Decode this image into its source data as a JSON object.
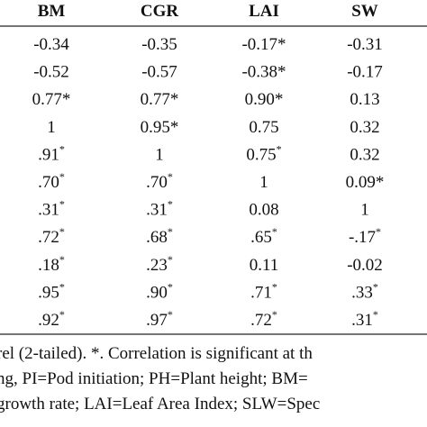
{
  "table": {
    "header": [
      "BM",
      "CGR",
      "LAI",
      "SW"
    ],
    "rows": [
      [
        "-0.34",
        "-0.35",
        "-0.17*",
        "-0.31"
      ],
      [
        "-0.52",
        "-0.57",
        "-0.38*",
        "-0.17"
      ],
      [
        "0.77*",
        "0.77*",
        "0.90*",
        "0.13"
      ],
      [
        "1",
        "0.95*",
        "0.75",
        "0.32"
      ],
      [
        {
          "text": ".91",
          "sup": "*"
        },
        "1",
        {
          "text": "0.75",
          "sup": "*"
        },
        "0.32"
      ],
      [
        {
          "text": ".70",
          "sup": "*"
        },
        {
          "text": ".70",
          "sup": "*"
        },
        "1",
        "0.09*"
      ],
      [
        {
          "text": ".31",
          "sup": "*"
        },
        {
          "text": ".31",
          "sup": "*"
        },
        "0.08",
        "1"
      ],
      [
        {
          "text": ".72",
          "sup": "*"
        },
        {
          "text": ".68",
          "sup": "*"
        },
        {
          "text": ".65",
          "sup": "*"
        },
        {
          "text": "-.17",
          "sup": "*"
        }
      ],
      [
        {
          "text": ".18",
          "sup": "*"
        },
        {
          "text": ".23",
          "sup": "*"
        },
        "0.11",
        "-0.02"
      ],
      [
        {
          "text": ".95",
          "sup": "*"
        },
        {
          "text": ".90",
          "sup": "*"
        },
        {
          "text": ".71",
          "sup": "*"
        },
        {
          "text": ".33",
          "sup": "*"
        }
      ],
      [
        {
          "text": ".92",
          "sup": "*"
        },
        {
          "text": ".97",
          "sup": "*"
        },
        {
          "text": ".72",
          "sup": "*"
        },
        {
          "text": ".31",
          "sup": "*"
        }
      ]
    ]
  },
  "footnotes": [
    "rel (2-tailed). *. Correlation is significant at th",
    "ng, PI=Pod initiation; PH=Plant height; BM=",
    "growth rate; LAI=Leaf Area Index; SLW=Spec"
  ]
}
